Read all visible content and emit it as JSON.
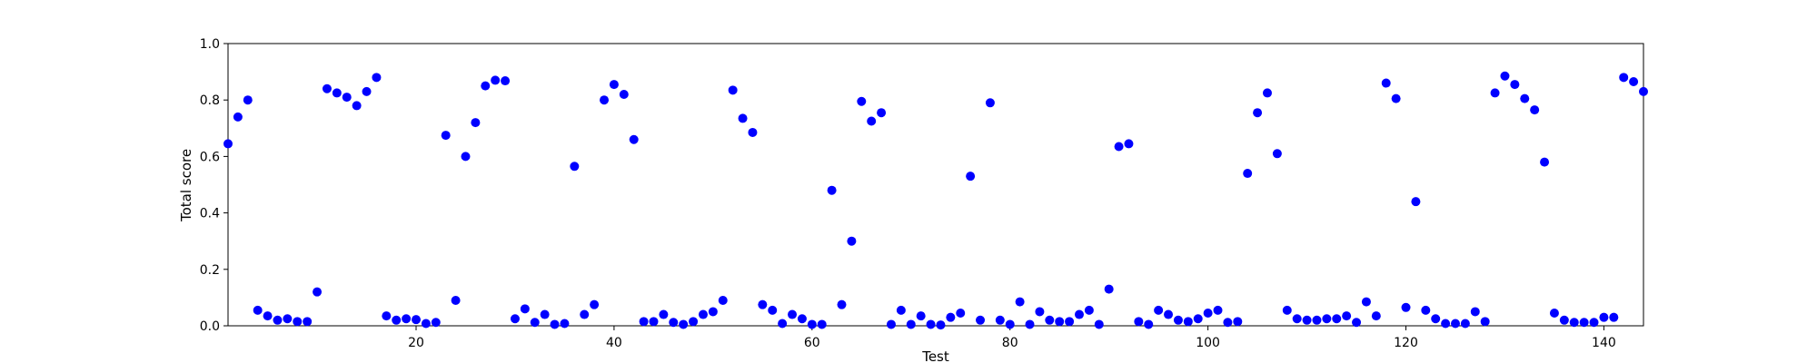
{
  "chart_data": {
    "type": "scatter",
    "title": "",
    "xlabel": "Test",
    "ylabel": "Total score",
    "xlim": [
      1,
      144
    ],
    "ylim": [
      0,
      1.0
    ],
    "xticks": [
      20,
      40,
      60,
      80,
      100,
      120,
      140
    ],
    "yticks": [
      0.0,
      0.2,
      0.4,
      0.6,
      0.8,
      1.0
    ],
    "ytick_labels": [
      "0.0",
      "0.2",
      "0.4",
      "0.6",
      "0.8",
      "1.0"
    ],
    "grid": false,
    "marker_color": "#0000ff",
    "series": [
      {
        "x": [
          1,
          2,
          3,
          4,
          5,
          6,
          7,
          8,
          9,
          10,
          11,
          12,
          13,
          14,
          15,
          16,
          17,
          18,
          19,
          20,
          21,
          22,
          23,
          24,
          25,
          26,
          27,
          28,
          29,
          30,
          31,
          32,
          33,
          34,
          35,
          36,
          37,
          38,
          39,
          40,
          41,
          42,
          43,
          44,
          45,
          46,
          47,
          48,
          49,
          50,
          51,
          52,
          53,
          54,
          55,
          56,
          57,
          58,
          59,
          60,
          61,
          62,
          63,
          64,
          65,
          66,
          67,
          68,
          69,
          70,
          71,
          72,
          73,
          74,
          75,
          76,
          77,
          78,
          79,
          80,
          81,
          82,
          83,
          84,
          85,
          86,
          87,
          88,
          89,
          90,
          91,
          92,
          93,
          94,
          95,
          96,
          97,
          98,
          99,
          100,
          101,
          102,
          103,
          104,
          105,
          106,
          107,
          108,
          109,
          110,
          111,
          112,
          113,
          114,
          115,
          116,
          117,
          118,
          119,
          120,
          121,
          122,
          123,
          124,
          125,
          126,
          127,
          128,
          129,
          130,
          131,
          132,
          133,
          134,
          135,
          136,
          137,
          138,
          139,
          140,
          141,
          142,
          143,
          144
        ],
        "y": [
          0.645,
          0.74,
          0.8,
          0.055,
          0.035,
          0.02,
          0.025,
          0.015,
          0.015,
          0.12,
          0.84,
          0.825,
          0.81,
          0.78,
          0.83,
          0.88,
          0.035,
          0.02,
          0.025,
          0.022,
          0.008,
          0.012,
          0.675,
          0.09,
          0.6,
          0.72,
          0.85,
          0.87,
          0.868,
          0.025,
          0.06,
          0.012,
          0.04,
          0.005,
          0.008,
          0.565,
          0.04,
          0.075,
          0.8,
          0.855,
          0.82,
          0.66,
          0.015,
          0.015,
          0.04,
          0.012,
          0.005,
          0.015,
          0.04,
          0.05,
          0.09,
          0.835,
          0.735,
          0.685,
          0.075,
          0.055,
          0.008,
          0.04,
          0.025,
          0.005,
          0.005,
          0.48,
          0.075,
          0.3,
          0.795,
          0.725,
          0.755,
          0.005,
          0.055,
          0.005,
          0.035,
          0.005,
          0.003,
          0.03,
          0.045,
          0.53,
          0.02,
          0.79,
          0.02,
          0.005,
          0.085,
          0.005,
          0.05,
          0.02,
          0.015,
          0.015,
          0.04,
          0.055,
          0.005,
          0.13,
          0.635,
          0.645,
          0.015,
          0.005,
          0.055,
          0.04,
          0.02,
          0.015,
          0.025,
          0.045,
          0.055,
          0.012,
          0.015,
          0.54,
          0.755,
          0.825,
          0.61,
          0.055,
          0.025,
          0.02,
          0.02,
          0.025,
          0.025,
          0.035,
          0.012,
          0.085,
          0.035,
          0.86,
          0.805,
          0.065,
          0.44,
          0.055,
          0.025,
          0.008,
          0.008,
          0.008,
          0.05,
          0.015,
          0.825,
          0.885,
          0.855,
          0.805,
          0.765,
          0.58,
          0.045,
          0.02,
          0.012,
          0.012,
          0.012,
          0.03,
          0.03,
          0.88,
          0.865,
          0.83
        ]
      }
    ]
  }
}
